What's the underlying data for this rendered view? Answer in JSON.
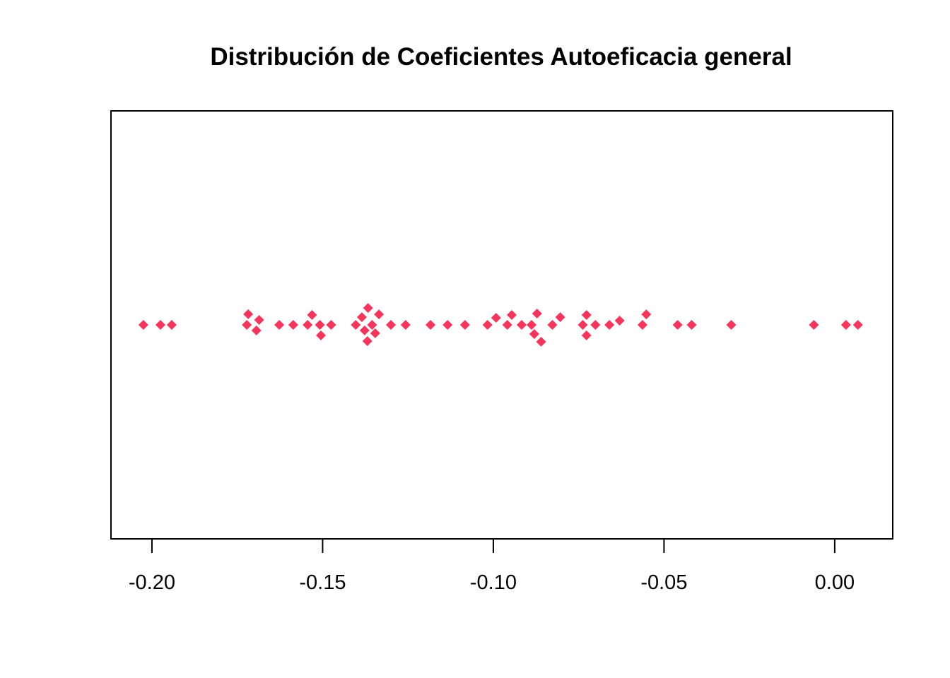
{
  "chart_data": {
    "type": "scatter",
    "subtype": "stripchart-jitter",
    "title": "Distribución de Coeficientes Autoeficacia general",
    "xlabel": "",
    "ylabel": "",
    "xlim": [
      -0.212,
      0.017
    ],
    "ylim": [
      -1,
      1
    ],
    "x_ticks": [
      -0.2,
      -0.15,
      -0.1,
      -0.05,
      0.0
    ],
    "x_tick_labels": [
      "-0.20",
      "-0.15",
      "-0.10",
      "-0.05",
      "0.00"
    ],
    "y_axis_shown": false,
    "grid": false,
    "legend": "none",
    "marker": "diamond",
    "marker_color": "#F5365C",
    "points": [
      {
        "x": -0.2025,
        "y": 0.0
      },
      {
        "x": -0.1975,
        "y": 0.0
      },
      {
        "x": -0.1942,
        "y": 0.0
      },
      {
        "x": -0.1718,
        "y": 0.05
      },
      {
        "x": -0.1722,
        "y": 0.0
      },
      {
        "x": -0.1686,
        "y": 0.023
      },
      {
        "x": -0.1694,
        "y": -0.026
      },
      {
        "x": -0.1627,
        "y": 0.0
      },
      {
        "x": -0.1586,
        "y": 0.0
      },
      {
        "x": -0.1544,
        "y": 0.0
      },
      {
        "x": -0.1531,
        "y": 0.046
      },
      {
        "x": -0.1508,
        "y": 0.0
      },
      {
        "x": -0.1505,
        "y": -0.049
      },
      {
        "x": -0.1475,
        "y": 0.0
      },
      {
        "x": -0.1403,
        "y": 0.0
      },
      {
        "x": -0.1385,
        "y": 0.036
      },
      {
        "x": -0.1367,
        "y": 0.079
      },
      {
        "x": -0.1377,
        "y": -0.026
      },
      {
        "x": -0.1369,
        "y": -0.076
      },
      {
        "x": -0.1355,
        "y": 0.0
      },
      {
        "x": -0.1346,
        "y": -0.039
      },
      {
        "x": -0.1335,
        "y": 0.049
      },
      {
        "x": -0.13,
        "y": 0.0
      },
      {
        "x": -0.1257,
        "y": 0.0
      },
      {
        "x": -0.1184,
        "y": 0.0
      },
      {
        "x": -0.1134,
        "y": 0.0
      },
      {
        "x": -0.1083,
        "y": 0.0
      },
      {
        "x": -0.1017,
        "y": 0.0
      },
      {
        "x": -0.0992,
        "y": 0.033
      },
      {
        "x": -0.0959,
        "y": 0.0
      },
      {
        "x": -0.0946,
        "y": 0.046
      },
      {
        "x": -0.0917,
        "y": 0.0
      },
      {
        "x": -0.0888,
        "y": 0.0
      },
      {
        "x": -0.0872,
        "y": 0.053
      },
      {
        "x": -0.088,
        "y": -0.043
      },
      {
        "x": -0.086,
        "y": -0.079
      },
      {
        "x": -0.0827,
        "y": 0.0
      },
      {
        "x": -0.0804,
        "y": 0.036
      },
      {
        "x": -0.0738,
        "y": 0.0
      },
      {
        "x": -0.0727,
        "y": 0.046
      },
      {
        "x": -0.0727,
        "y": -0.049
      },
      {
        "x": -0.0701,
        "y": 0.0
      },
      {
        "x": -0.066,
        "y": 0.0
      },
      {
        "x": -0.063,
        "y": 0.02
      },
      {
        "x": -0.0563,
        "y": 0.0
      },
      {
        "x": -0.0552,
        "y": 0.049
      },
      {
        "x": -0.046,
        "y": 0.0
      },
      {
        "x": -0.0419,
        "y": 0.0
      },
      {
        "x": -0.0303,
        "y": 0.0
      },
      {
        "x": -0.0061,
        "y": 0.0
      },
      {
        "x": 0.0033,
        "y": 0.0
      },
      {
        "x": 0.0068,
        "y": 0.0
      }
    ]
  }
}
